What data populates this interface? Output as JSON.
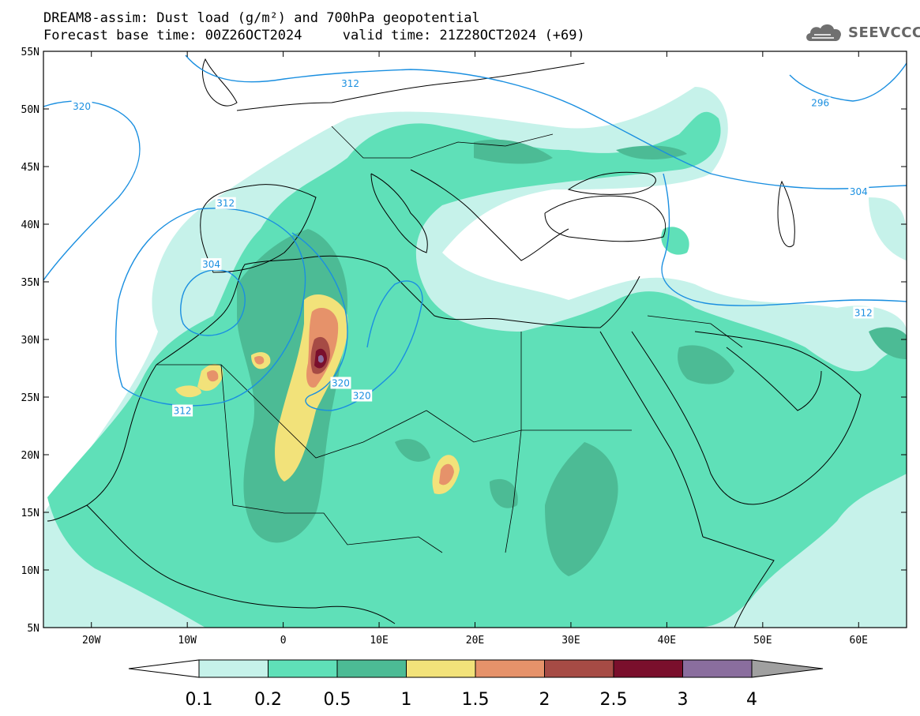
{
  "header": {
    "title_line1": "DREAM8-assim: Dust load (g/m²) and 700hPa geopotential",
    "base_time_label": "Forecast base time: 00Z26OCT2024",
    "valid_time_label": "valid time: 21Z28OCT2024 (+69)"
  },
  "logo": {
    "text": "SEEVCCC",
    "icon": "cloud-icon"
  },
  "map": {
    "lon_range": [
      -25,
      65
    ],
    "lat_range": [
      5,
      55
    ],
    "lat_ticks": [
      {
        "value": 55,
        "label": "55N"
      },
      {
        "value": 50,
        "label": "50N"
      },
      {
        "value": 45,
        "label": "45N"
      },
      {
        "value": 40,
        "label": "40N"
      },
      {
        "value": 35,
        "label": "35N"
      },
      {
        "value": 30,
        "label": "30N"
      },
      {
        "value": 25,
        "label": "25N"
      },
      {
        "value": 20,
        "label": "20N"
      },
      {
        "value": 15,
        "label": "15N"
      },
      {
        "value": 10,
        "label": "10N"
      },
      {
        "value": 5,
        "label": "5N"
      }
    ],
    "lon_ticks": [
      {
        "value": -20,
        "label": "20W"
      },
      {
        "value": -10,
        "label": "10W"
      },
      {
        "value": 0,
        "label": "0"
      },
      {
        "value": 10,
        "label": "10E"
      },
      {
        "value": 20,
        "label": "20E"
      },
      {
        "value": 30,
        "label": "30E"
      },
      {
        "value": 40,
        "label": "40E"
      },
      {
        "value": 50,
        "label": "50E"
      },
      {
        "value": 60,
        "label": "60E"
      }
    ],
    "geopotential_contour_labels": [
      {
        "text": "320",
        "lon": -21,
        "lat": 50.2
      },
      {
        "text": "312",
        "lon": 7,
        "lat": 52.2
      },
      {
        "text": "296",
        "lon": 56,
        "lat": 50.5
      },
      {
        "text": "304",
        "lon": 60,
        "lat": 42.8
      },
      {
        "text": "312",
        "lon": -6,
        "lat": 41.8
      },
      {
        "text": "304",
        "lon": -7.5,
        "lat": 36.5
      },
      {
        "text": "312",
        "lon": 60.5,
        "lat": 32.3
      },
      {
        "text": "320",
        "lon": 6,
        "lat": 26.2
      },
      {
        "text": "320",
        "lon": 8.2,
        "lat": 25.1
      },
      {
        "text": "312",
        "lon": -10.5,
        "lat": 23.8
      }
    ],
    "colors": {
      "ocean_background": "#ffffff",
      "coastline": "#000000",
      "contour": "#1a8fe0"
    }
  },
  "colorbar": {
    "levels": [
      "0.1",
      "0.2",
      "0.5",
      "1",
      "1.5",
      "2",
      "2.5",
      "3",
      "4"
    ],
    "colors": [
      "#c6f2ea",
      "#5fe0b8",
      "#4cbb95",
      "#f2e27a",
      "#e6926a",
      "#a64b45",
      "#7a0f2c",
      "#8a6e9e"
    ],
    "under_color": "#ffffff",
    "over_color": "#a0a0a0"
  }
}
